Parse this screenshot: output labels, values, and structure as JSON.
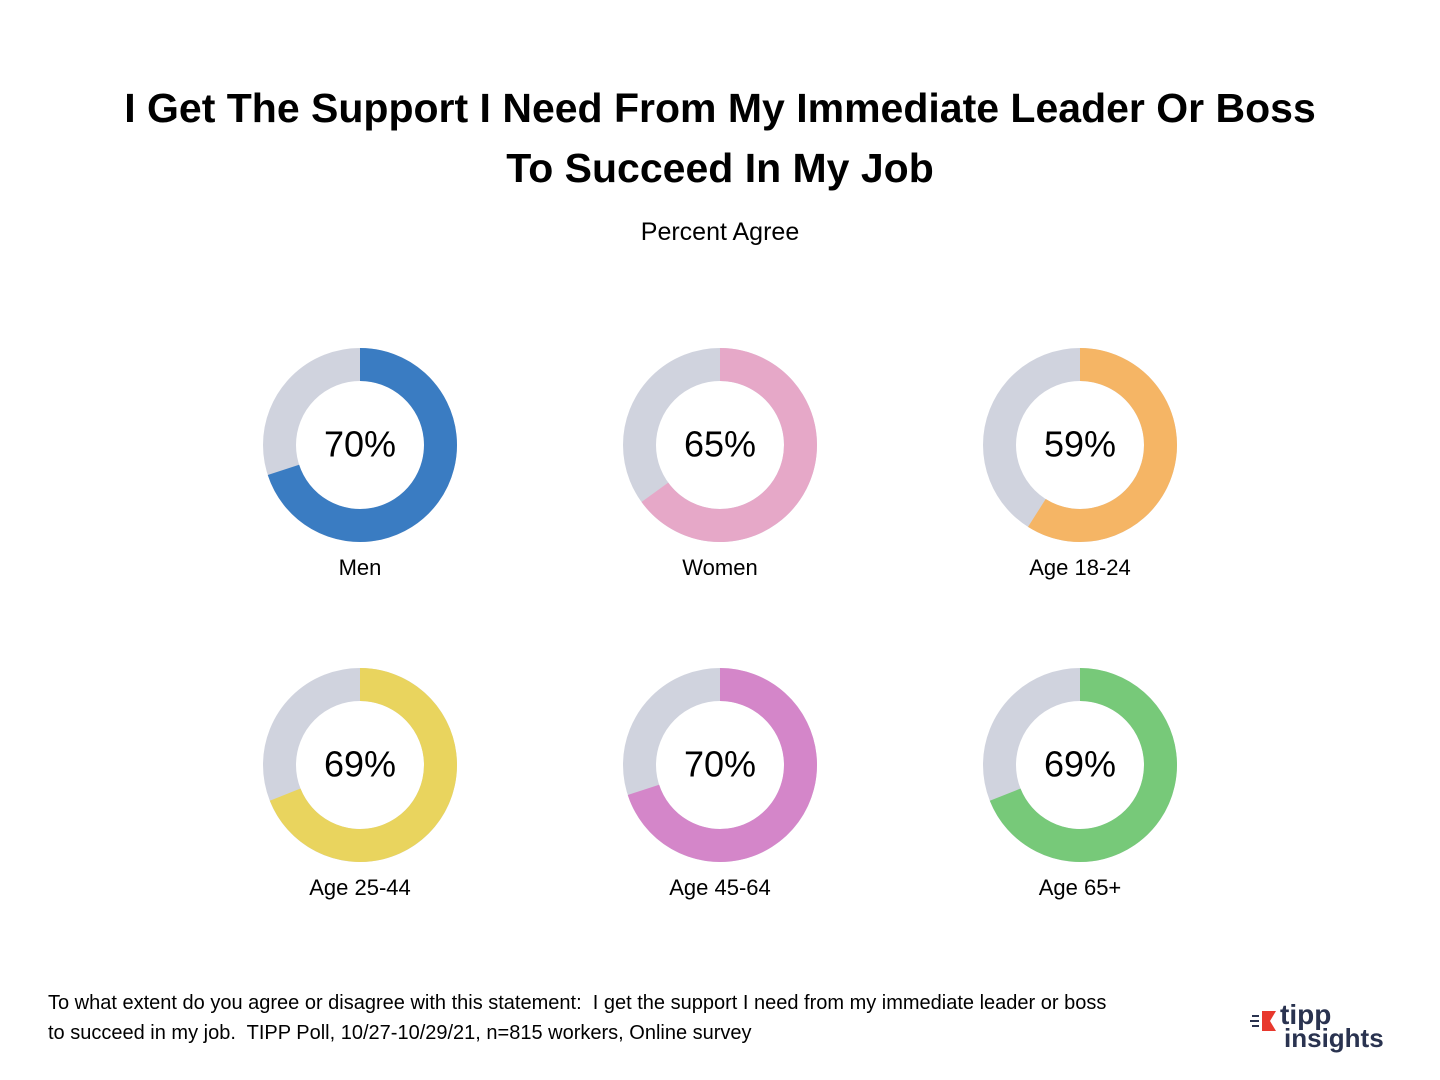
{
  "title": "I Get The Support I Need From My Immediate Leader Or Boss To Succeed In My Job",
  "subtitle": "Percent Agree",
  "note": "To what extent do you agree or disagree with this statement:  I get the support I need from my immediate leader or boss to succeed in my job.  TIPP Poll, 10/27-10/29/21, n=815 workers, Online survey",
  "logo": {
    "line1": "tipp",
    "line2": "insights"
  },
  "chart_data": [
    {
      "type": "donut",
      "categories": [
        "Men"
      ],
      "values": [
        70
      ],
      "value_labels": [
        "70%"
      ],
      "color": "#3a7cc2"
    },
    {
      "type": "donut",
      "categories": [
        "Women"
      ],
      "values": [
        65
      ],
      "value_labels": [
        "65%"
      ],
      "color": "#e6a8c8"
    },
    {
      "type": "donut",
      "categories": [
        "Age 18-24"
      ],
      "values": [
        59
      ],
      "value_labels": [
        "59%"
      ],
      "color": "#f5b565"
    },
    {
      "type": "donut",
      "categories": [
        "Age 25-44"
      ],
      "values": [
        69
      ],
      "value_labels": [
        "69%"
      ],
      "color": "#e9d45e"
    },
    {
      "type": "donut",
      "categories": [
        "Age 45-64"
      ],
      "values": [
        70
      ],
      "value_labels": [
        "70%"
      ],
      "color": "#d486c9"
    },
    {
      "type": "donut",
      "categories": [
        "Age 65+"
      ],
      "values": [
        69
      ],
      "value_labels": [
        "69%"
      ],
      "color": "#77c979"
    }
  ]
}
